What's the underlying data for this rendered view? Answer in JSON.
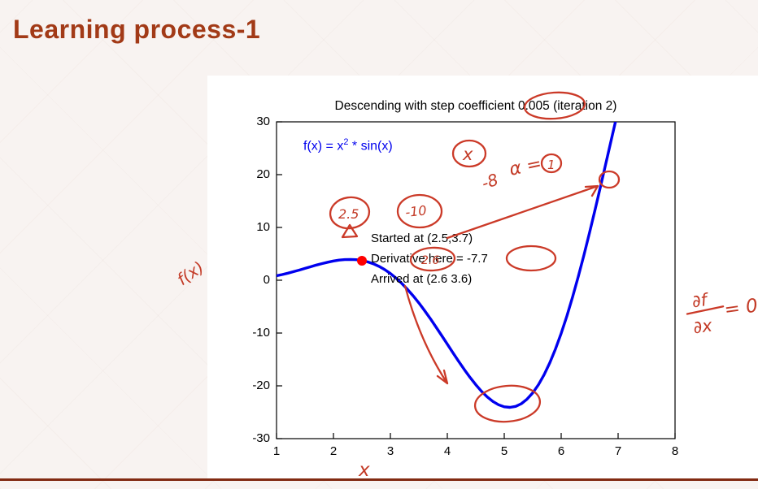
{
  "slide": {
    "title": "Learning process-1",
    "accent_color": "#a23a17"
  },
  "chart_data": {
    "type": "line",
    "title": "Descending with step coefficient 0.005 (iteration 2)",
    "xlabel": "x",
    "ylabel": "f(x)",
    "xlim": [
      1,
      8
    ],
    "ylim": [
      -30,
      30
    ],
    "x_ticks": [
      1,
      2,
      3,
      4,
      5,
      6,
      7,
      8
    ],
    "y_ticks": [
      30,
      20,
      10,
      0,
      -10,
      -20,
      -30
    ],
    "grid": false,
    "legend": {
      "pre": "f(x) = x",
      "sup": "2",
      "post": " * sin(x)",
      "color": "#0000ee"
    },
    "series": [
      {
        "name": "f(x) = x^2 * sin(x)",
        "color": "#0000ee",
        "x": [
          1,
          1.1,
          1.2,
          1.3,
          1.4,
          1.5,
          1.6,
          1.7,
          1.8,
          1.9,
          2,
          2.1,
          2.2,
          2.3,
          2.4,
          2.5,
          2.6,
          2.7,
          2.8,
          2.9,
          3,
          3.1,
          3.2,
          3.3,
          3.4,
          3.5,
          3.6,
          3.7,
          3.8,
          3.9,
          4,
          4.1,
          4.2,
          4.3,
          4.4,
          4.5,
          4.6,
          4.7,
          4.8,
          4.9,
          5,
          5.1,
          5.2,
          5.3,
          5.4,
          5.5,
          5.6,
          5.7,
          5.8,
          5.9,
          6,
          6.1,
          6.2,
          6.3,
          6.4,
          6.5,
          6.6,
          6.7,
          6.8,
          6.9,
          7
        ],
        "y": [
          0.84,
          1.08,
          1.34,
          1.63,
          1.93,
          2.24,
          2.56,
          2.87,
          3.16,
          3.42,
          3.64,
          3.81,
          3.91,
          3.94,
          3.89,
          3.74,
          3.48,
          3.12,
          2.63,
          2.01,
          1.27,
          0.4,
          -0.6,
          -1.72,
          -2.95,
          -4.3,
          -5.74,
          -7.25,
          -8.84,
          -10.46,
          -12.11,
          -13.76,
          -15.37,
          -16.94,
          -18.42,
          -19.79,
          -21.03,
          -22.09,
          -22.95,
          -23.59,
          -23.97,
          -24.08,
          -23.89,
          -23.38,
          -22.53,
          -21.34,
          -19.8,
          -17.89,
          -15.63,
          -13.02,
          -10.06,
          -6.78,
          -3.19,
          0.67,
          4.77,
          9.09,
          13.57,
          18.17,
          22.85,
          27.54,
          32.19
        ]
      }
    ],
    "marker": {
      "x": 2.5,
      "y": 3.7,
      "color": "#ff0000"
    },
    "annotations": [
      "Started at (2.5,3.7)",
      "Derivative here = -7.7",
      "Arrived at (2.6 3.6)"
    ]
  },
  "ink": {
    "color": "#cb3a28",
    "x_var": "x",
    "alpha": "α =",
    "alpha_value": "1",
    "slope": "-8",
    "start_x": "2.5",
    "grad": "-10",
    "mid_value": "2.6",
    "partial_num": "∂f",
    "partial_den": "∂x",
    "equals_zero": "= 0",
    "y_axis": "f(x)",
    "x_axis": "x"
  }
}
